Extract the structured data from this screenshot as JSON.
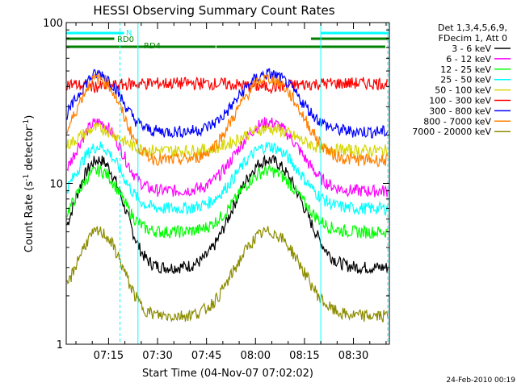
{
  "chart_data": {
    "type": "line",
    "title": "HESSI Observing Summary Count Rates",
    "xlabel": "Start Time (04-Nov-07 07:02:02)",
    "ylabel": "Count Rate (s",
    "ylabel_sup1": "-1",
    "ylabel_mid": " detector",
    "ylabel_sup2": "-1",
    "ylabel_end": ")",
    "xlim": [
      "07:02:02",
      "08:41:00"
    ],
    "ylim": [
      1,
      100
    ],
    "y_scale": "log",
    "x_ticks": [
      "07:15",
      "07:30",
      "07:45",
      "08:00",
      "08:15",
      "08:30"
    ],
    "y_ticks": [
      "1",
      "10",
      "100"
    ],
    "timestamp": "24-Feb-2010 00:19",
    "legend_header": [
      "Det 1,3,4,5,6,9,",
      "FDecim 1, Att 0"
    ],
    "series": [
      {
        "name": "3 - 6 keV",
        "color": "#000000"
      },
      {
        "name": "6 - 12 keV",
        "color": "#ff00ff"
      },
      {
        "name": "12 - 25 keV",
        "color": "#00ff00"
      },
      {
        "name": "25 - 50 keV",
        "color": "#00ffff"
      },
      {
        "name": "50 - 100 keV",
        "color": "#d6d600"
      },
      {
        "name": "100 - 300 keV",
        "color": "#ff0000"
      },
      {
        "name": "300 - 800 keV",
        "color": "#0000ff"
      },
      {
        "name": "800 - 7000 keV",
        "color": "#ff7f00"
      },
      {
        "name": "7000 - 20000 keV",
        "color": "#8c8c00"
      }
    ],
    "flags": [
      {
        "name": "N",
        "color": "#00ffff",
        "intervals": [
          [
            "07:02:02",
            "07:20:00"
          ],
          [
            "08:20:00",
            "08:41:00"
          ]
        ]
      },
      {
        "name": "RD0",
        "color": "#008000",
        "intervals": [
          [
            "07:02:02",
            "07:17:00"
          ],
          [
            "08:17:00",
            "08:41:00"
          ]
        ]
      },
      {
        "name": "RD4",
        "color": "#008000",
        "intervals": [
          [
            "07:02:02",
            "07:48:00"
          ],
          [
            "07:48:00",
            "08:40:00"
          ]
        ]
      }
    ],
    "saa_boundaries": [
      "07:18:30",
      "08:40:30"
    ],
    "night_boundaries": [
      "07:24:00",
      "08:20:00"
    ]
  }
}
